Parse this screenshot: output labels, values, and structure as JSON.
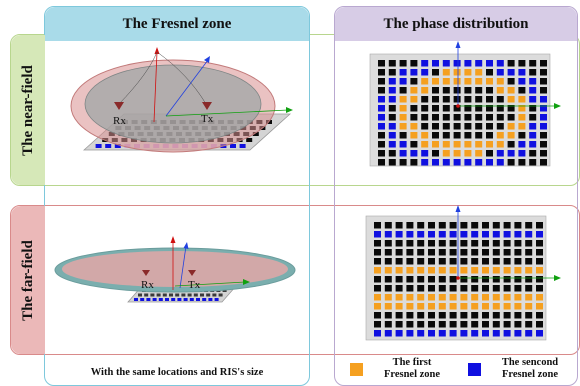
{
  "columns": {
    "left_title": "The Fresnel zone",
    "right_title": "The phase distribution"
  },
  "rows": {
    "top_label": "The near-field",
    "bottom_label": "The far-field"
  },
  "markers": {
    "rx": "Rx",
    "tx": "Tx"
  },
  "caption": "With the same locations and RIS's size",
  "legend": {
    "first_line1": "The first",
    "first_line2": "Fresnel zone",
    "second_line1": "The sencond",
    "second_line2": "Fresnel zone",
    "first_color": "#f5a020",
    "second_color": "#1010e0"
  },
  "colors": {
    "left_column": "#7ec8dc",
    "left_header": "#a9dbe9",
    "right_column": "#b9a8d0",
    "right_header": "#d7cce6",
    "top_row": "#b8d68e",
    "top_header": "#d6e8b8",
    "bottom_row": "#d98a8a",
    "bottom_header": "#ebb8b8",
    "cell": "#0a0a0a"
  }
}
